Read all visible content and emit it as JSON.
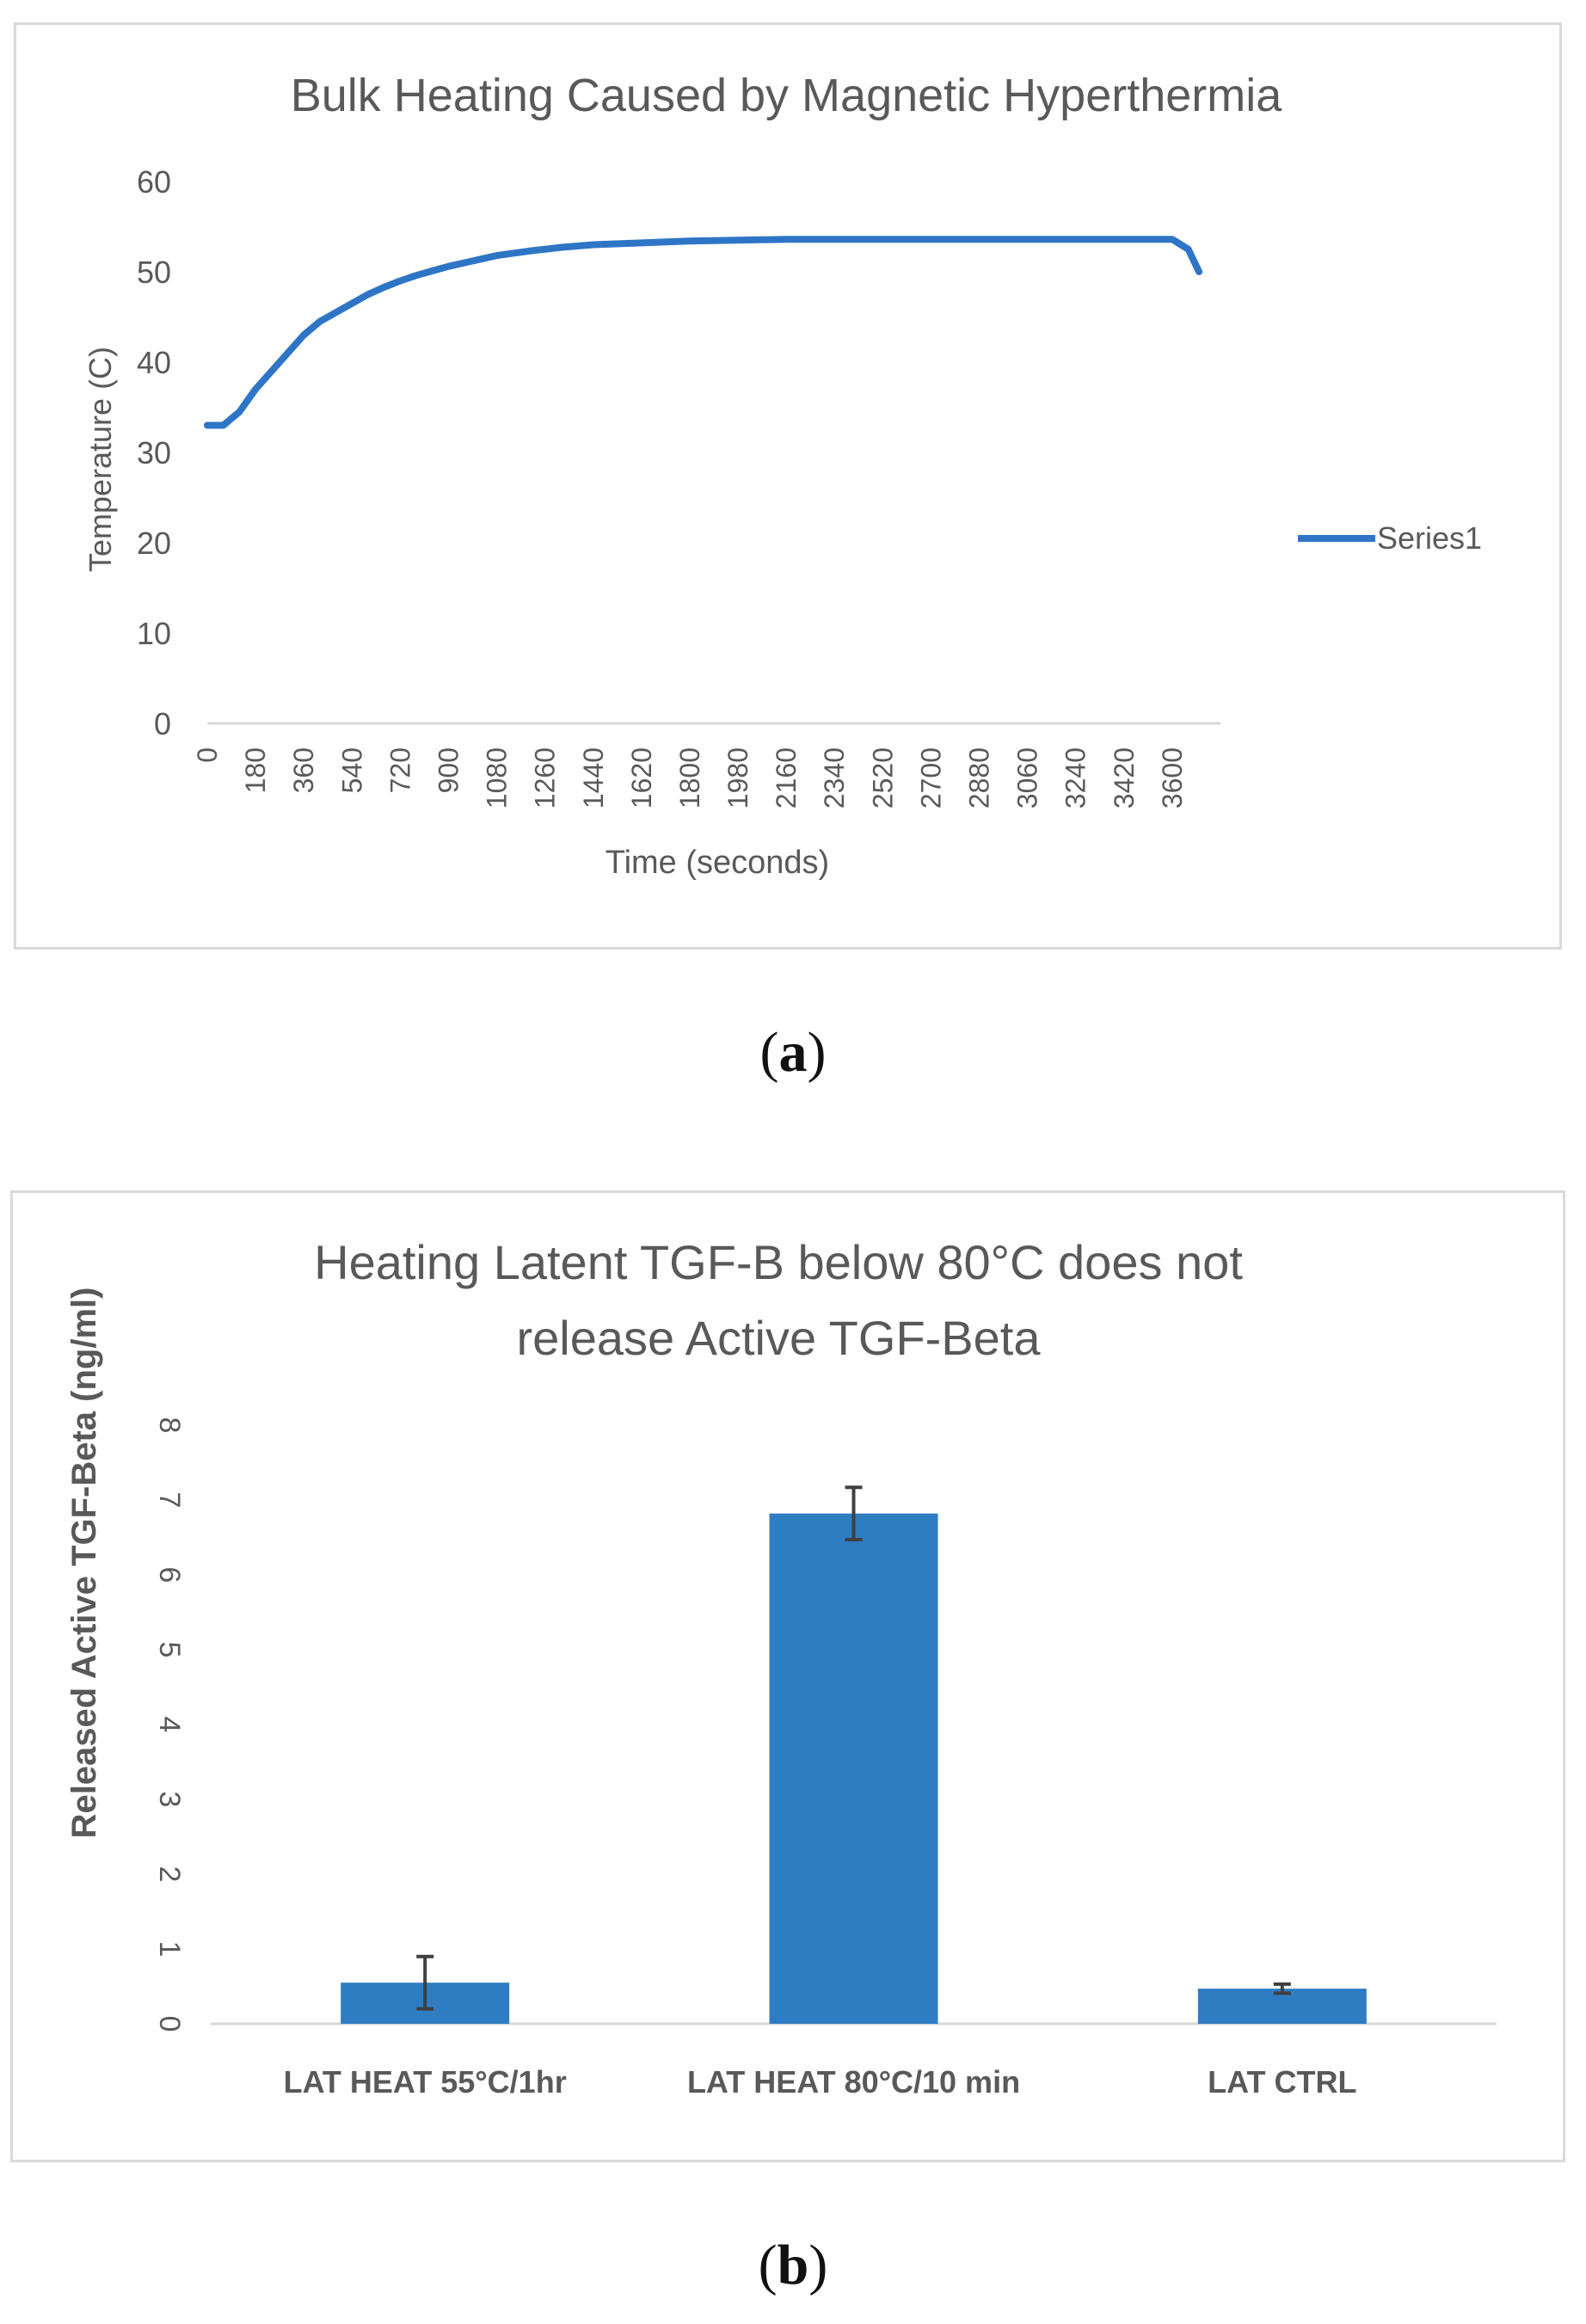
{
  "captions": {
    "a_open": "(",
    "a_letter": "a",
    "a_close": ")",
    "b_open": "(",
    "b_letter": "b",
    "b_close": ")"
  },
  "colors": {
    "series": "#2e75c6",
    "bar": "#2e7dc3",
    "text": "#595959",
    "axis": "#d9d9d9",
    "error": "#404040"
  },
  "chart_data": [
    {
      "type": "line",
      "title": "Bulk Heating Caused by Magnetic Hyperthermia",
      "xlabel": "Time (seconds)",
      "ylabel": "Temperature (C)",
      "ylim": [
        0,
        60
      ],
      "xlim": [
        0,
        3700
      ],
      "yticks": [
        "0",
        "10",
        "20",
        "30",
        "40",
        "50",
        "60"
      ],
      "xticks": [
        "0",
        "180",
        "360",
        "540",
        "720",
        "900",
        "1080",
        "1260",
        "1440",
        "1620",
        "1800",
        "1980",
        "2160",
        "2340",
        "2520",
        "2700",
        "2880",
        "3060",
        "3240",
        "3420",
        "3600"
      ],
      "legend": "right",
      "series": [
        {
          "name": "Series1",
          "x": [
            0,
            60,
            120,
            180,
            240,
            300,
            360,
            420,
            480,
            540,
            600,
            660,
            720,
            780,
            840,
            900,
            960,
            1020,
            1080,
            1200,
            1320,
            1440,
            1620,
            1800,
            1980,
            2160,
            2340,
            2520,
            2700,
            2880,
            3060,
            3240,
            3420,
            3600,
            3660,
            3700
          ],
          "y": [
            33,
            33,
            34.5,
            37,
            39,
            41,
            43,
            44.5,
            45.5,
            46.5,
            47.5,
            48.3,
            49,
            49.6,
            50.1,
            50.6,
            51,
            51.4,
            51.8,
            52.3,
            52.7,
            53,
            53.2,
            53.4,
            53.5,
            53.6,
            53.6,
            53.6,
            53.6,
            53.6,
            53.6,
            53.6,
            53.6,
            53.6,
            52.5,
            50
          ]
        }
      ]
    },
    {
      "type": "bar",
      "title_line1": "Heating Latent TGF-B below 80°C does not",
      "title_line2": "release Active TGF-Beta",
      "xlabel": "",
      "ylabel": "Released Active TGF-Beta (ng/ml)",
      "ylim": [
        0,
        8
      ],
      "yticks": [
        "0",
        "1",
        "2",
        "3",
        "4",
        "5",
        "6",
        "7",
        "8"
      ],
      "categories": [
        "LAT HEAT 55°C/1hr",
        "LAT HEAT 80°C/10 min",
        "LAT CTRL"
      ],
      "values": [
        0.55,
        6.82,
        0.47
      ],
      "errors": [
        0.35,
        0.35,
        0.06
      ]
    }
  ]
}
